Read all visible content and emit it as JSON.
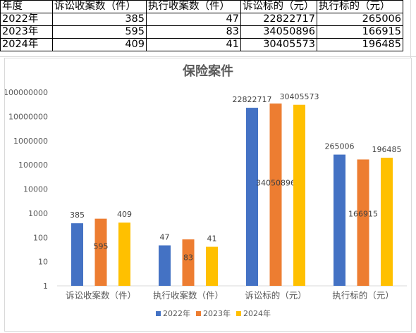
{
  "sheet": {
    "headers": [
      "年度",
      "诉讼收案数（件）",
      "执行收案数（件）",
      "诉讼标的（元）",
      "执行标的（元）"
    ],
    "rows": [
      [
        "2022年",
        "385",
        "47",
        "22822717",
        "265006"
      ],
      [
        "2023年",
        "595",
        "83",
        "34050896",
        "166915"
      ],
      [
        "2024年",
        "409",
        "41",
        "30405573",
        "196485"
      ]
    ]
  },
  "chart_data": {
    "type": "bar",
    "title": "保险案件",
    "categories": [
      "诉讼收案数（件）",
      "执行收案数（件）",
      "诉讼标的（元）",
      "执行标的（元）"
    ],
    "series": [
      {
        "name": "2022年",
        "color": "#4472C4",
        "values": [
          385,
          47,
          22822717,
          265006
        ]
      },
      {
        "name": "2023年",
        "color": "#ED7D31",
        "values": [
          595,
          83,
          34050896,
          166915
        ]
      },
      {
        "name": "2024年",
        "color": "#FFC000",
        "values": [
          409,
          41,
          30405573,
          196485
        ]
      }
    ],
    "y_scale": "log",
    "ylim": [
      1,
      100000000
    ],
    "y_ticks": [
      "1",
      "10",
      "100",
      "1000",
      "10000",
      "100000",
      "1000000",
      "10000000",
      "100000000"
    ],
    "grid": false,
    "legend_position": "bottom"
  }
}
